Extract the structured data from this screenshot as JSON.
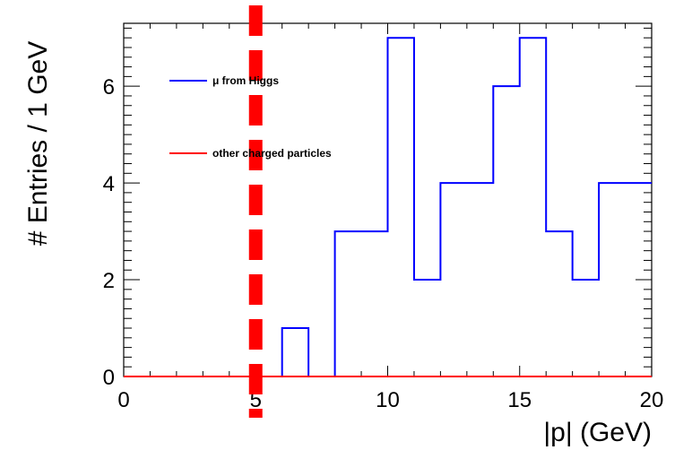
{
  "chart_data": {
    "type": "histogram",
    "xlabel": "|p| (GeV)",
    "ylabel": "# Entries / 1 GeV",
    "xlim": [
      0,
      20
    ],
    "ylim": [
      0,
      7.3
    ],
    "x_ticks": [
      0,
      5,
      10,
      15,
      20
    ],
    "y_ticks": [
      0,
      2,
      4,
      6
    ],
    "bin_edges": [
      0,
      1,
      2,
      3,
      4,
      5,
      6,
      7,
      8,
      9,
      10,
      11,
      12,
      13,
      14,
      15,
      16,
      17,
      18,
      19,
      20
    ],
    "series": [
      {
        "name": "μ from Higgs",
        "color": "#0000ff",
        "values": [
          0,
          0,
          0,
          0,
          0,
          0,
          1,
          0,
          3,
          3,
          7,
          2,
          4,
          4,
          6,
          7,
          3,
          2,
          4,
          4
        ]
      },
      {
        "name": "other charged particles",
        "color": "#ff0000",
        "values": [
          0,
          0,
          0,
          0,
          0,
          0,
          0,
          0,
          0,
          0,
          0,
          0,
          0,
          0,
          0,
          0,
          0,
          0,
          0,
          0
        ]
      }
    ],
    "cut_line": {
      "x": 5,
      "color": "#ff0000",
      "style": "dashed"
    },
    "legend_position": "top-left"
  }
}
